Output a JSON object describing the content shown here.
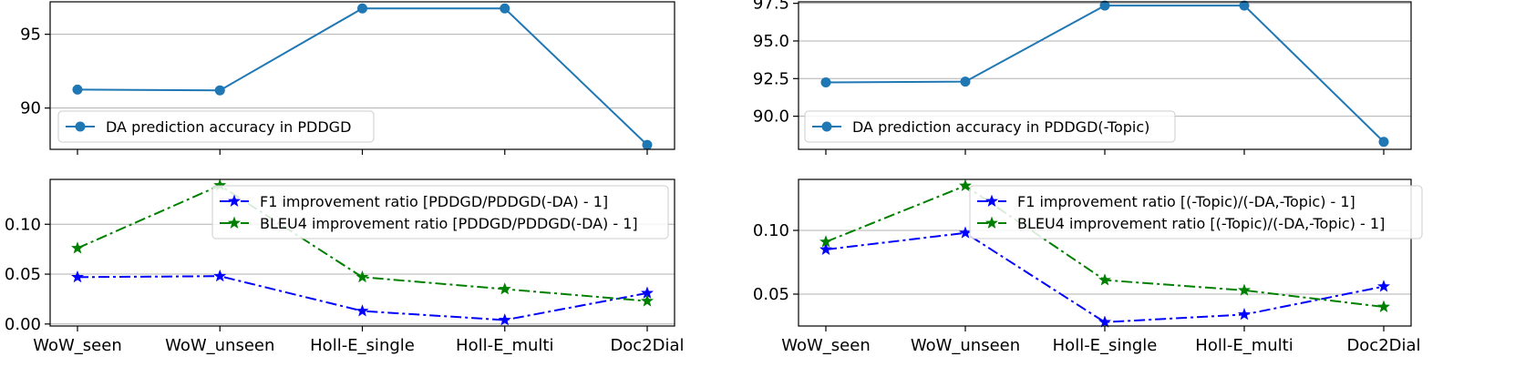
{
  "chart_data": [
    {
      "type": "line",
      "panel": "top-left",
      "categories": [
        "WoW_seen",
        "WoW_unseen",
        "Holl-E_single",
        "Holl-E_multi",
        "Doc2Dial"
      ],
      "series": [
        {
          "name": "DA prediction accuracy in PDDGD",
          "values": [
            91.25,
            91.2,
            96.75,
            96.75,
            87.5
          ],
          "color": "#1f77b4",
          "style": "solid",
          "marker": "circle"
        }
      ],
      "ylim": [
        87.2,
        97.2
      ],
      "yticks": [
        90,
        95
      ],
      "ytick_labels": [
        "90",
        "95"
      ],
      "show_xtick_labels": false,
      "grid": "y",
      "legend_position": "lower-left"
    },
    {
      "type": "line",
      "panel": "bottom-left",
      "categories": [
        "WoW_seen",
        "WoW_unseen",
        "Holl-E_single",
        "Holl-E_multi",
        "Doc2Dial"
      ],
      "series": [
        {
          "name": "F1 improvement ratio [PDDGD/PDDGD(-DA) - 1]",
          "values": [
            0.047,
            0.048,
            0.013,
            0.004,
            0.031
          ],
          "color": "#0000ff",
          "style": "dashdot",
          "marker": "star"
        },
        {
          "name": "BLEU4 improvement ratio [PDDGD/PDDGD(-DA) - 1]",
          "values": [
            0.076,
            0.139,
            0.047,
            0.035,
            0.023
          ],
          "color": "#008000",
          "style": "dashdot",
          "marker": "star"
        }
      ],
      "ylim": [
        -0.002,
        0.145
      ],
      "yticks": [
        0.0,
        0.05,
        0.1
      ],
      "ytick_labels": [
        "0.00",
        "0.05",
        "0.10"
      ],
      "show_xtick_labels": true,
      "grid": "y",
      "legend_position": "upper-right"
    },
    {
      "type": "line",
      "panel": "top-right",
      "categories": [
        "WoW_seen",
        "WoW_unseen",
        "Holl-E_single",
        "Holl-E_multi",
        "Doc2Dial"
      ],
      "series": [
        {
          "name": "DA prediction accuracy in PDDGD(-Topic)",
          "values": [
            92.25,
            92.3,
            97.35,
            97.35,
            88.3
          ],
          "color": "#1f77b4",
          "style": "solid",
          "marker": "circle"
        }
      ],
      "ylim": [
        87.8,
        97.6
      ],
      "yticks": [
        90.0,
        92.5,
        95.0,
        97.5
      ],
      "ytick_labels": [
        "90.0",
        "92.5",
        "95.0",
        "97.5"
      ],
      "show_xtick_labels": false,
      "grid": "y",
      "legend_position": "lower-left"
    },
    {
      "type": "line",
      "panel": "bottom-right",
      "categories": [
        "WoW_seen",
        "WoW_unseen",
        "Holl-E_single",
        "Holl-E_multi",
        "Doc2Dial"
      ],
      "series": [
        {
          "name": "F1 improvement ratio [(-Topic)/(-DA,-Topic) - 1]",
          "values": [
            0.085,
            0.098,
            0.028,
            0.034,
            0.056
          ],
          "color": "#0000ff",
          "style": "dashdot",
          "marker": "star"
        },
        {
          "name": "BLEU4 improvement ratio [(-Topic)/(-DA,-Topic) - 1]",
          "values": [
            0.091,
            0.135,
            0.061,
            0.053,
            0.04
          ],
          "color": "#008000",
          "style": "dashdot",
          "marker": "star"
        }
      ],
      "ylim": [
        0.025,
        0.14
      ],
      "yticks": [
        0.05,
        0.1
      ],
      "ytick_labels": [
        "0.05",
        "0.10"
      ],
      "show_xtick_labels": true,
      "grid": "y",
      "legend_position": "upper-right"
    }
  ]
}
